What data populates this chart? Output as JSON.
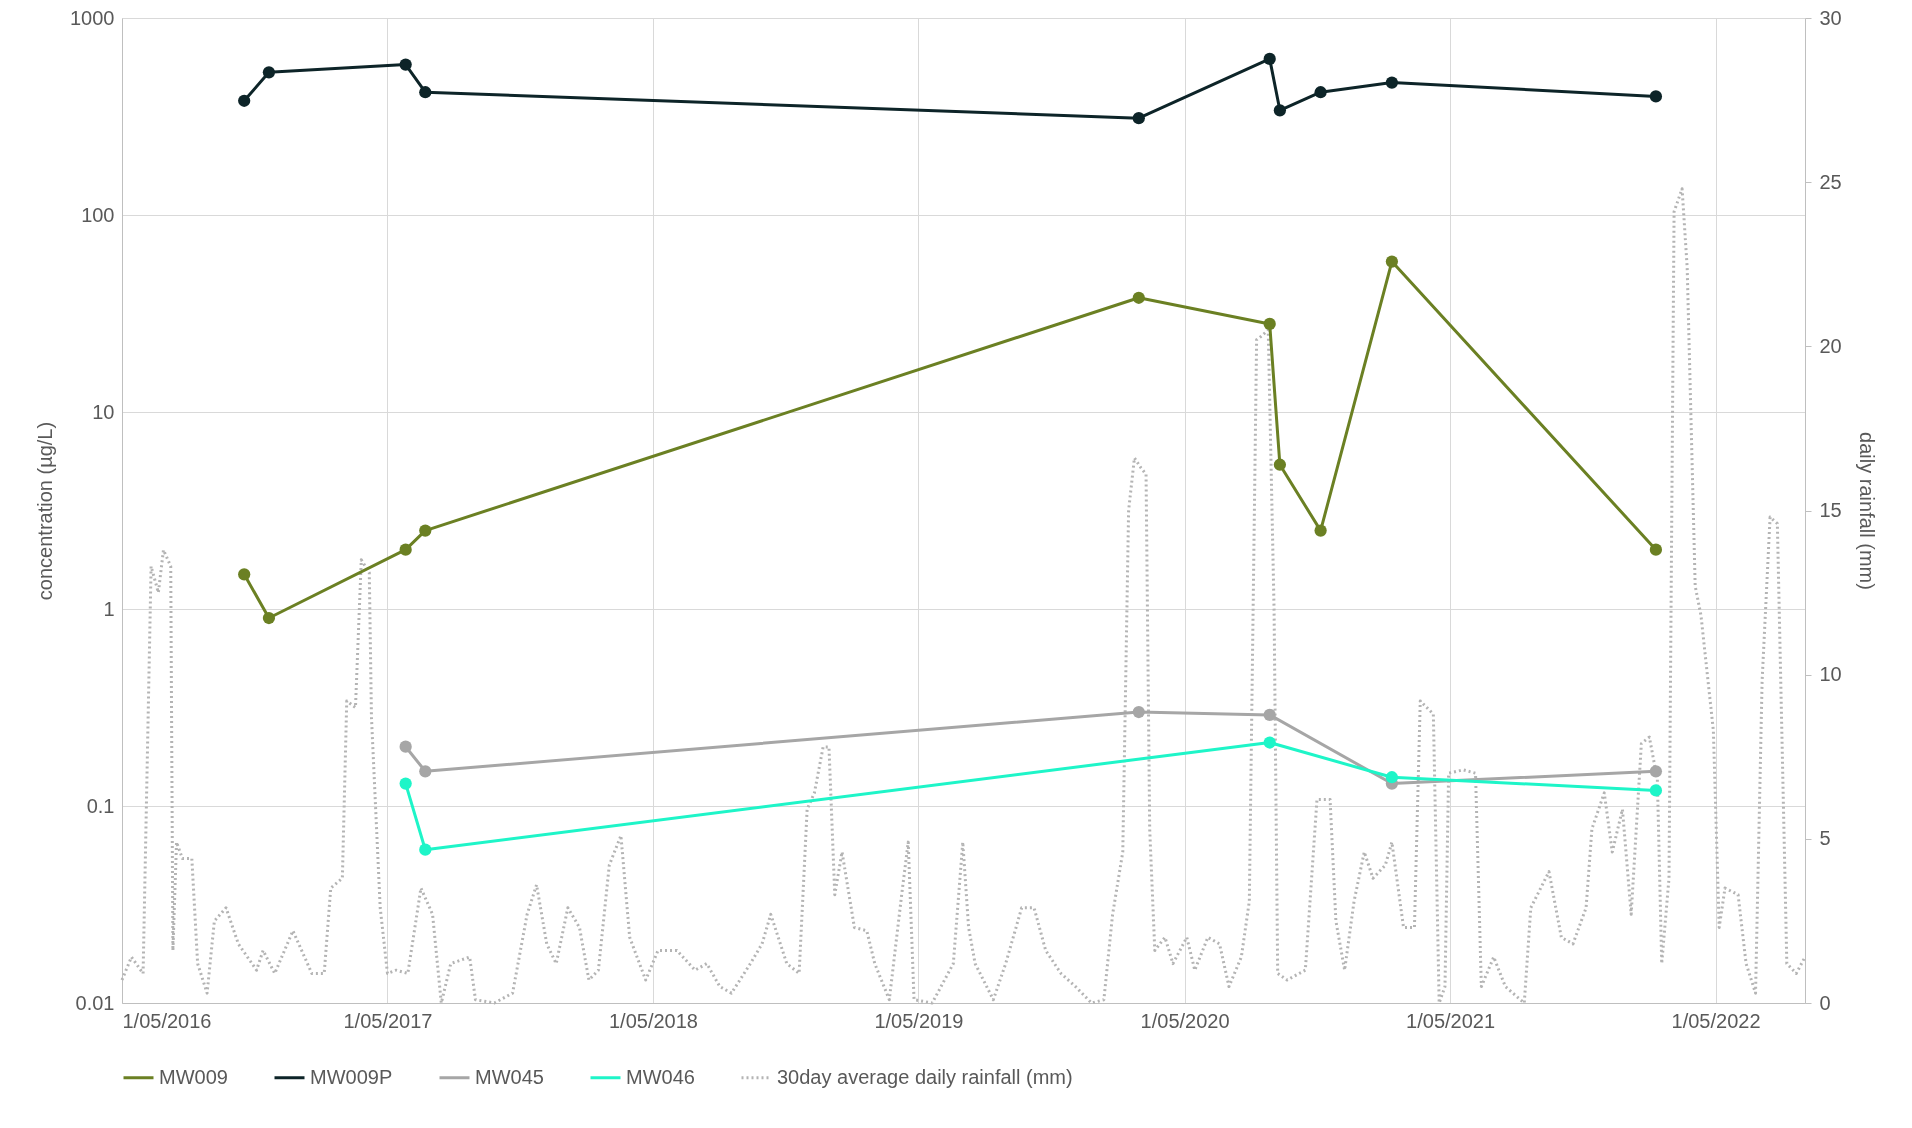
{
  "chart_data": {
    "type": "line",
    "ylabel": "concentration (µg/L)",
    "y2label": "daily rainfall (mm)",
    "log": "y",
    "grid": true,
    "legend": "bottom",
    "marker": "circle",
    "xlim": [
      "2016-05-01",
      "2022-09-01"
    ],
    "xticks": [
      {
        "value": "2016-05-01",
        "label": "1/05/2016"
      },
      {
        "value": "2017-05-01",
        "label": "1/05/2017"
      },
      {
        "value": "2018-05-01",
        "label": "1/05/2018"
      },
      {
        "value": "2019-05-01",
        "label": "1/05/2019"
      },
      {
        "value": "2020-05-01",
        "label": "1/05/2020"
      },
      {
        "value": "2021-05-01",
        "label": "1/05/2021"
      },
      {
        "value": "2022-05-01",
        "label": "1/05/2022"
      }
    ],
    "ylim": [
      0.01,
      1000
    ],
    "yticks": [
      0.01,
      0.1,
      1,
      10,
      100,
      1000
    ],
    "y2lim": [
      0,
      30
    ],
    "y2ticks": [
      0,
      5,
      10,
      15,
      20,
      25,
      30
    ],
    "series": [
      {
        "name": "MW009",
        "color": "#6b8023",
        "line_style": "solid",
        "x": [
          "2016-10-16",
          "2016-11-19",
          "2017-05-26",
          "2017-06-22",
          "2020-02-28",
          "2020-08-26",
          "2020-09-09",
          "2020-11-04",
          "2021-02-10",
          "2022-02-08"
        ],
        "values": [
          1.5,
          0.9,
          2.0,
          2.5,
          38,
          28,
          5.4,
          2.5,
          58,
          2.0
        ]
      },
      {
        "name": "MW009P",
        "color": "#0d2428",
        "line_style": "solid",
        "x": [
          "2016-10-16",
          "2016-11-19",
          "2017-05-26",
          "2017-06-22",
          "2020-02-28",
          "2020-08-26",
          "2020-09-09",
          "2020-11-04",
          "2021-02-10",
          "2022-02-08"
        ],
        "values": [
          380,
          530,
          580,
          420,
          310,
          620,
          340,
          420,
          470,
          400
        ]
      },
      {
        "name": "MW045",
        "color": "#a6a6a6",
        "line_style": "solid",
        "x": [
          "2017-05-26",
          "2017-06-22",
          "2020-02-28",
          "2020-08-26",
          "2021-02-10",
          "2022-02-08"
        ],
        "values": [
          0.2,
          0.15,
          0.3,
          0.29,
          0.13,
          0.15
        ]
      },
      {
        "name": "MW046",
        "color": "#1ef5c8",
        "line_style": "solid",
        "x": [
          "2017-05-26",
          "2017-06-22",
          "2020-08-26",
          "2021-02-10",
          "2022-02-08"
        ],
        "values": [
          0.13,
          0.06,
          0.21,
          0.14,
          0.12
        ]
      },
      {
        "name": "30day average daily rainfall (mm)",
        "color": "#b4b4b4",
        "line_style": "dotted",
        "marker": "none",
        "axis": "y2",
        "x": [
          "2016-05-01",
          "2016-05-14",
          "2016-05-30",
          "2016-06-10",
          "2016-06-20",
          "2016-06-27",
          "2016-07-07",
          "2016-07-10",
          "2016-07-15",
          "2016-07-23",
          "2016-08-05",
          "2016-08-13",
          "2016-08-26",
          "2016-09-05",
          "2016-09-21",
          "2016-10-08",
          "2016-11-02",
          "2016-11-11",
          "2016-11-27",
          "2016-12-22",
          "2017-01-17",
          "2017-02-03",
          "2017-02-12",
          "2017-02-28",
          "2017-03-06",
          "2017-03-18",
          "2017-03-26",
          "2017-04-06",
          "2017-04-09",
          "2017-04-21",
          "2017-05-01",
          "2017-05-13",
          "2017-05-29",
          "2017-06-16",
          "2017-07-02",
          "2017-07-14",
          "2017-07-27",
          "2017-08-22",
          "2017-08-30",
          "2017-09-25",
          "2017-10-20",
          "2017-11-09",
          "2017-11-22",
          "2017-12-06",
          "2017-12-19",
          "2018-01-04",
          "2018-01-20",
          "2018-02-02",
          "2018-02-15",
          "2018-03-02",
          "2018-03-18",
          "2018-03-30",
          "2018-04-21",
          "2018-05-08",
          "2018-06-03",
          "2018-06-28",
          "2018-07-14",
          "2018-08-01",
          "2018-08-17",
          "2018-09-12",
          "2018-09-28",
          "2018-10-10",
          "2018-11-01",
          "2018-11-18",
          "2018-11-29",
          "2018-12-09",
          "2018-12-21",
          "2018-12-29",
          "2019-01-06",
          "2019-01-16",
          "2019-02-02",
          "2019-02-19",
          "2019-03-02",
          "2019-03-22",
          "2019-04-08",
          "2019-04-17",
          "2019-04-25",
          "2019-05-20",
          "2019-06-18",
          "2019-07-01",
          "2019-07-09",
          "2019-07-18",
          "2019-08-12",
          "2019-08-29",
          "2019-09-20",
          "2019-10-07",
          "2019-10-23",
          "2019-11-13",
          "2019-12-03",
          "2019-12-25",
          "2020-01-11",
          "2020-01-23",
          "2020-02-06",
          "2020-02-14",
          "2020-02-22",
          "2020-03-02",
          "2020-03-09",
          "2020-03-14",
          "2020-03-21",
          "2020-04-04",
          "2020-04-15",
          "2020-05-04",
          "2020-05-15",
          "2020-06-02",
          "2020-06-18",
          "2020-07-01",
          "2020-07-18",
          "2020-07-29",
          "2020-08-08",
          "2020-08-14",
          "2020-08-24",
          "2020-09-01",
          "2020-09-06",
          "2020-09-19",
          "2020-10-14",
          "2020-10-30",
          "2020-11-17",
          "2020-11-25",
          "2020-12-07",
          "2020-12-20",
          "2021-01-03",
          "2021-01-15",
          "2021-02-01",
          "2021-02-10",
          "2021-02-26",
          "2021-03-13",
          "2021-03-21",
          "2021-04-08",
          "2021-04-16",
          "2021-04-24",
          "2021-04-29",
          "2021-05-19",
          "2021-06-05",
          "2021-06-13",
          "2021-06-30",
          "2021-07-16",
          "2021-08-11",
          "2021-08-20",
          "2021-09-14",
          "2021-10-01",
          "2021-10-17",
          "2021-11-04",
          "2021-11-12",
          "2021-11-29",
          "2021-12-10",
          "2021-12-24",
          "2022-01-05",
          "2022-01-19",
          "2022-01-30",
          "2022-02-10",
          "2022-02-16",
          "2022-02-26",
          "2022-03-05",
          "2022-03-16",
          "2022-03-23",
          "2022-04-03",
          "2022-04-11",
          "2022-04-28",
          "2022-05-06",
          "2022-05-14",
          "2022-06-01",
          "2022-06-12",
          "2022-06-25",
          "2022-07-04",
          "2022-07-15",
          "2022-07-25",
          "2022-08-07",
          "2022-08-20",
          "2022-09-01"
        ],
        "values": [
          0.7,
          1.4,
          0.9,
          13.3,
          12.5,
          13.8,
          13.3,
          1.6,
          4.9,
          4.4,
          4.4,
          1.2,
          0.3,
          2.5,
          2.9,
          1.8,
          1.0,
          1.6,
          0.9,
          2.2,
          0.9,
          0.9,
          3.5,
          3.8,
          9.2,
          9.0,
          13.5,
          13.1,
          8.7,
          2.9,
          0.9,
          1.0,
          0.9,
          3.5,
          2.7,
          0,
          1.2,
          1.4,
          0.1,
          0,
          0.3,
          2.7,
          3.6,
          1.8,
          1.2,
          2.9,
          2.3,
          0.7,
          1.0,
          4.2,
          5.1,
          2.0,
          0.7,
          1.6,
          1.6,
          1.0,
          1.2,
          0.5,
          0.3,
          1.2,
          1.8,
          2.7,
          1.2,
          0.9,
          5.9,
          6.4,
          7.8,
          7.8,
          3.3,
          4.6,
          2.3,
          2.2,
          1.2,
          0.1,
          3.3,
          4.9,
          0.1,
          0,
          1.2,
          4.9,
          2.3,
          1.2,
          0.1,
          1.2,
          2.9,
          2.9,
          1.6,
          0.9,
          0.5,
          0,
          0.1,
          2.7,
          4.6,
          15.0,
          16.6,
          16.3,
          16.1,
          5.3,
          1.6,
          2.0,
          1.2,
          2.0,
          1.0,
          2.0,
          1.8,
          0.5,
          1.4,
          3.1,
          20.2,
          20.3,
          20.5,
          12.0,
          0.9,
          0.7,
          1.0,
          6.2,
          6.2,
          2.5,
          1.0,
          3.1,
          4.6,
          3.8,
          4.2,
          4.9,
          2.3,
          2.3,
          9.2,
          8.8,
          0,
          0.5,
          7.0,
          7.1,
          7.0,
          0.5,
          1.4,
          0.5,
          0,
          2.9,
          4.0,
          2.0,
          1.8,
          2.9,
          5.3,
          6.4,
          4.6,
          5.9,
          2.7,
          7.9,
          8.1,
          6.8,
          1.2,
          3.8,
          24.1,
          24.8,
          22.4,
          12.7,
          11.8,
          8.3,
          2.3,
          3.5,
          3.3,
          1.2,
          0.3,
          9.8,
          14.8,
          14.6,
          1.2,
          0.9,
          1.4
        ]
      }
    ]
  }
}
